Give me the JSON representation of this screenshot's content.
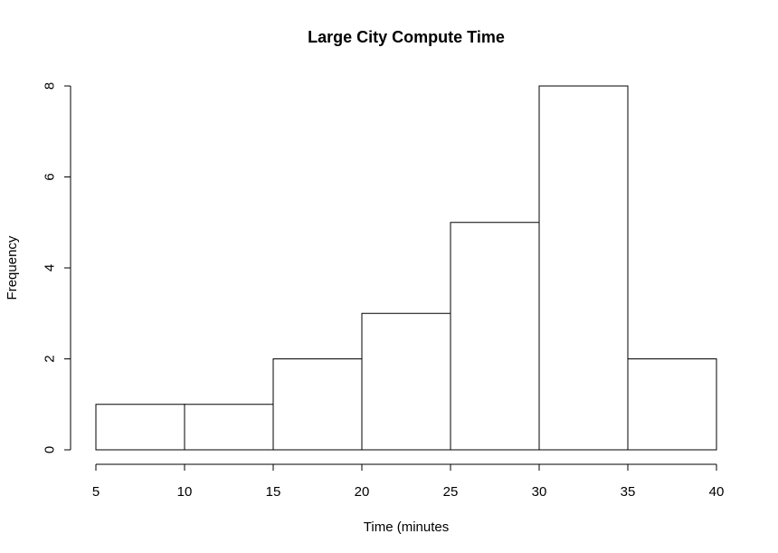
{
  "chart_data": {
    "type": "bar",
    "histogram": true,
    "title": "Large City Compute Time",
    "xlabel": "Time (minutes",
    "ylabel": "Frequency",
    "bins": [
      {
        "start": 5,
        "end": 10,
        "count": 1
      },
      {
        "start": 10,
        "end": 15,
        "count": 1
      },
      {
        "start": 15,
        "end": 20,
        "count": 2
      },
      {
        "start": 20,
        "end": 25,
        "count": 3
      },
      {
        "start": 25,
        "end": 30,
        "count": 5
      },
      {
        "start": 30,
        "end": 35,
        "count": 8
      },
      {
        "start": 35,
        "end": 40,
        "count": 2
      }
    ],
    "xticks": [
      5,
      10,
      15,
      20,
      25,
      30,
      35,
      40
    ],
    "yticks": [
      0,
      2,
      4,
      6,
      8
    ],
    "xlim": [
      5,
      40
    ],
    "ylim": [
      0,
      8
    ],
    "grid": false,
    "colors": {
      "bar_fill": "#ffffff",
      "bar_stroke": "#000000",
      "text": "#000000"
    }
  }
}
